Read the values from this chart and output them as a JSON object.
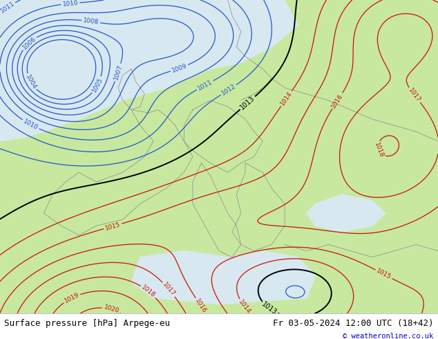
{
  "title_left": "Surface pressure [hPa] Arpege-eu",
  "title_right": "Fr 03-05-2024 12:00 UTC (18+42)",
  "copyright": "© weatheronline.co.uk",
  "bottom_bar_color": "#ffffff",
  "bottom_text_color": "#000000",
  "copyright_color": "#0000cc",
  "land_color": "#c8e8a0",
  "sea_color": "#d8e8f0",
  "coast_color": "#888888",
  "blue_isobar_color": "#2255cc",
  "red_isobar_color": "#cc1100",
  "black_isobar_color": "#000000",
  "fig_width": 6.34,
  "fig_height": 4.9,
  "dpi": 100,
  "blue_levels": [
    1004,
    1005,
    1006,
    1007,
    1008,
    1009,
    1010,
    1011,
    1012
  ],
  "red_levels": [
    1014,
    1015,
    1016,
    1017,
    1018,
    1019,
    1020
  ],
  "black_levels": [
    1013
  ]
}
